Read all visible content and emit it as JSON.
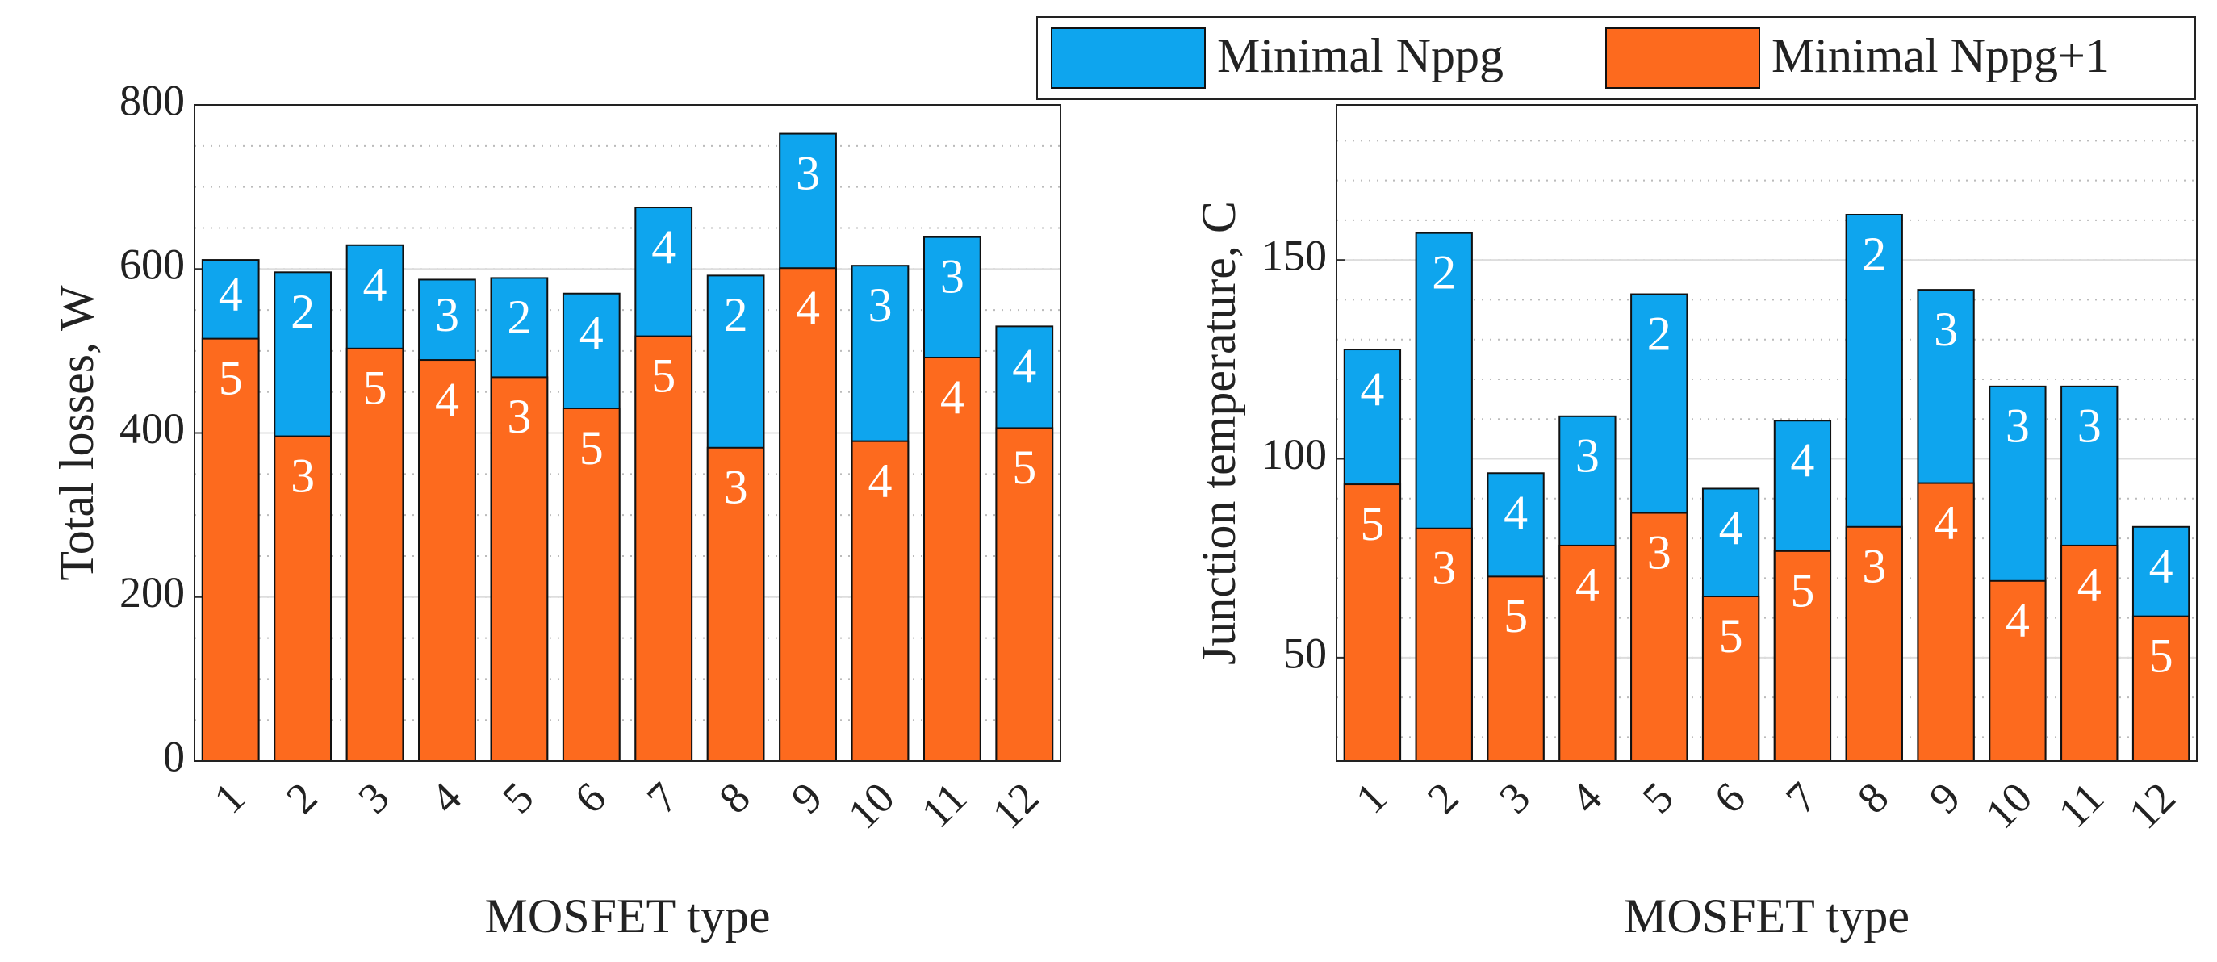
{
  "chart_data": [
    {
      "type": "bar",
      "overlap": true,
      "ylabel": "Total losses, W",
      "xlabel": "MOSFET type",
      "categories": [
        "1",
        "2",
        "3",
        "4",
        "5",
        "6",
        "7",
        "8",
        "9",
        "10",
        "11",
        "12"
      ],
      "ylim": [
        0,
        800
      ],
      "yticks": [
        0,
        200,
        400,
        600,
        800
      ],
      "grid": true,
      "minor_divisions": 4,
      "series": [
        {
          "name": "Minimal Nppg",
          "color": "#0ea5ee",
          "values": [
            611,
            596,
            629,
            587,
            589,
            570,
            675,
            592,
            765,
            604,
            639,
            530
          ],
          "bar_labels": [
            "4",
            "2",
            "4",
            "3",
            "2",
            "4",
            "4",
            "2",
            "3",
            "3",
            "3",
            "4"
          ]
        },
        {
          "name": "Minimal Nppg+1",
          "color": "#fd6a1e",
          "values": [
            515,
            396,
            503,
            489,
            468,
            430,
            518,
            382,
            601,
            390,
            492,
            406
          ],
          "bar_labels": [
            "5",
            "3",
            "5",
            "4",
            "3",
            "5",
            "5",
            "3",
            "4",
            "4",
            "4",
            "5"
          ]
        }
      ]
    },
    {
      "type": "bar",
      "overlap": true,
      "ylabel": "Junction temperature, C",
      "xlabel": "MOSFET type",
      "categories": [
        "1",
        "2",
        "3",
        "4",
        "5",
        "6",
        "7",
        "8",
        "9",
        "10",
        "11",
        "12"
      ],
      "ylim": [
        24,
        189
      ],
      "yticks": [
        50,
        100,
        150
      ],
      "grid": true,
      "minor_divisions": 5,
      "series": [
        {
          "color": "#0ea5ee",
          "values": [
            127.5,
            156.8,
            96.4,
            110.7,
            141.4,
            92.5,
            109.6,
            161.4,
            142.5,
            118.2,
            118.2,
            82.9
          ],
          "bar_labels": [
            "4",
            "2",
            "4",
            "3",
            "2",
            "4",
            "4",
            "2",
            "3",
            "3",
            "3",
            "4"
          ]
        },
        {
          "color": "#fd6a1e",
          "values": [
            93.6,
            82.5,
            70.4,
            78.2,
            86.4,
            65.4,
            76.8,
            82.9,
            93.9,
            69.3,
            78.2,
            60.4
          ],
          "bar_labels": [
            "5",
            "3",
            "5",
            "4",
            "3",
            "5",
            "5",
            "3",
            "4",
            "4",
            "4",
            "5"
          ]
        }
      ]
    }
  ]
}
